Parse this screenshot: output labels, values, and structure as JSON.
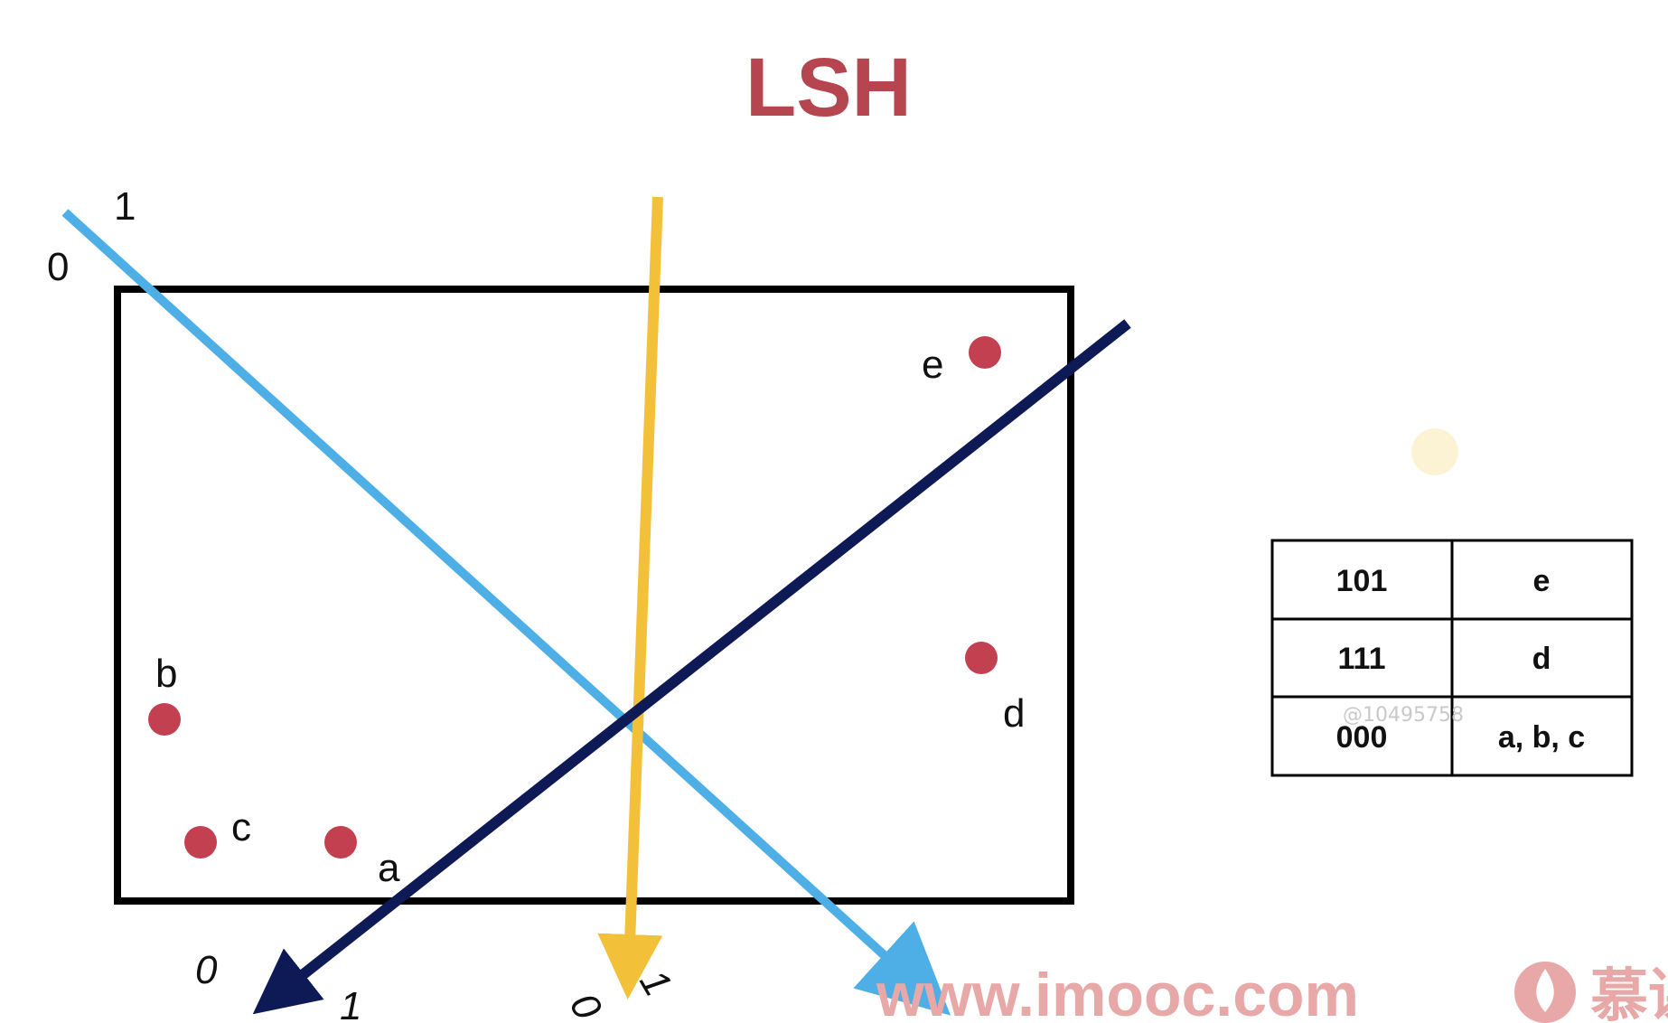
{
  "title": "LSH",
  "colors": {
    "title": "#b5454f",
    "point": "#c2404f",
    "line_light_blue": "#4eaee6",
    "line_yellow": "#f3c03a",
    "line_dark_navy": "#0d1a55",
    "box_border": "#000000",
    "watermark": "#e9a8a8"
  },
  "hyperplanes": [
    {
      "name": "light-blue-line",
      "side_labels": [
        "0",
        "1"
      ]
    },
    {
      "name": "yellow-line",
      "side_labels": [
        "0",
        "1"
      ]
    },
    {
      "name": "dark-navy-line",
      "side_labels": [
        "0",
        "1"
      ]
    }
  ],
  "points": [
    {
      "label": "a"
    },
    {
      "label": "b"
    },
    {
      "label": "c"
    },
    {
      "label": "d"
    },
    {
      "label": "e"
    }
  ],
  "hash_table": {
    "rows": [
      {
        "code": "101",
        "members": "e"
      },
      {
        "code": "111",
        "members": "d"
      },
      {
        "code": "000",
        "members": "a, b, c"
      }
    ]
  },
  "watermarks": {
    "user_id": "@10495758",
    "site": "www.imooc.com",
    "brand_cn": "慕课"
  }
}
